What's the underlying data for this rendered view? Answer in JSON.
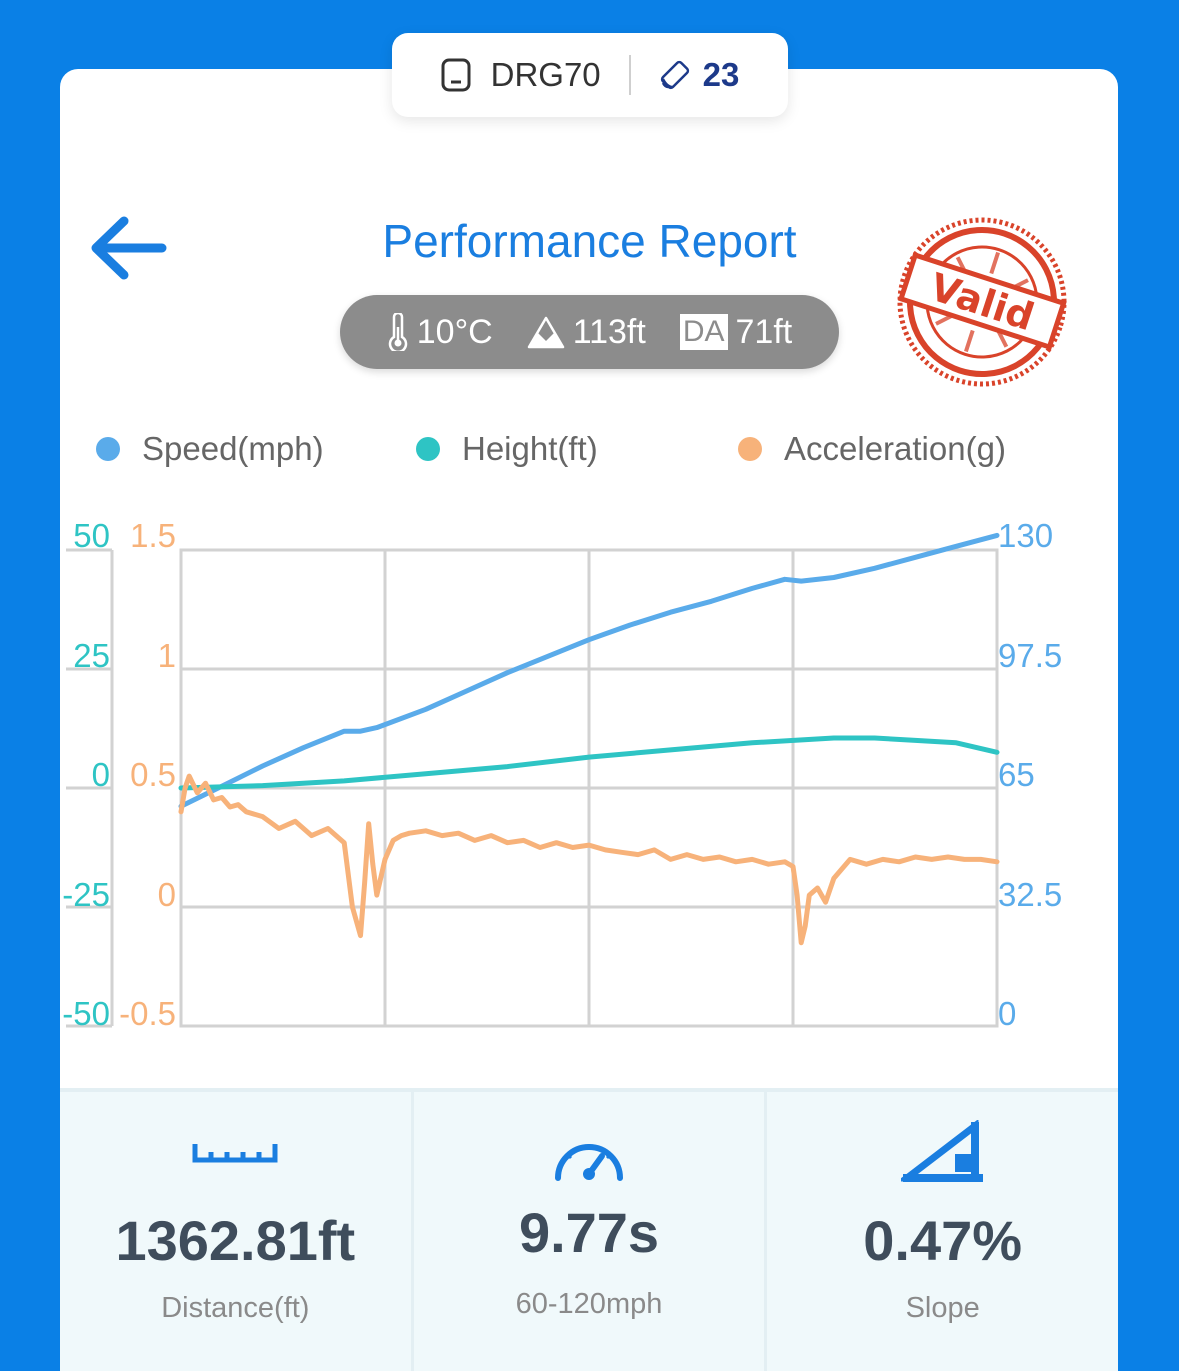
{
  "device": {
    "name": "DRG70",
    "satellites": "23",
    "device_icon": "phone-icon",
    "satellite_icon": "satellite-icon"
  },
  "header": {
    "title": "Performance Report",
    "back_icon": "arrow-left-icon"
  },
  "conditions": {
    "temperature": "10°C",
    "altitude": "113ft",
    "da_label": "DA",
    "density_altitude": "71ft"
  },
  "stamp": {
    "text": "Valid",
    "color": "#d9432a"
  },
  "legend": [
    {
      "label": "Speed(mph)",
      "color": "#5aabea"
    },
    {
      "label": "Height(ft)",
      "color": "#2ec4c4"
    },
    {
      "label": "Acceleration(g)",
      "color": "#f7b27a"
    }
  ],
  "chart_data": {
    "type": "line",
    "height_axis": {
      "ticks": [
        "50",
        "25",
        "0",
        "-25",
        "-50"
      ],
      "range": [
        -50,
        50
      ],
      "color": "#2ec4c4"
    },
    "accel_axis": {
      "ticks": [
        "1.5",
        "1",
        "0.5",
        "0",
        "-0.5"
      ],
      "range": [
        -0.5,
        1.5
      ],
      "color": "#f7b27a"
    },
    "speed_axis": {
      "ticks": [
        "130",
        "97.5",
        "65",
        "32.5",
        "0"
      ],
      "range": [
        0,
        130
      ],
      "color": "#5aabea"
    },
    "x_range": [
      0,
      1
    ],
    "grid": true,
    "series": [
      {
        "name": "Speed(mph)",
        "color": "#5aabea",
        "axis": "speed",
        "x": [
          0,
          0.05,
          0.1,
          0.15,
          0.2,
          0.22,
          0.24,
          0.3,
          0.35,
          0.4,
          0.45,
          0.5,
          0.55,
          0.6,
          0.65,
          0.7,
          0.74,
          0.76,
          0.8,
          0.85,
          0.9,
          0.95,
          1.0
        ],
        "values": [
          60,
          65.5,
          71,
          76,
          80.5,
          80.5,
          81.5,
          86.5,
          91.5,
          96.5,
          101,
          105.5,
          109.5,
          113,
          116,
          119.5,
          122,
          121.5,
          122.5,
          125,
          128,
          131,
          134
        ]
      },
      {
        "name": "Height(ft)",
        "color": "#2ec4c4",
        "axis": "height",
        "x": [
          0,
          0.1,
          0.2,
          0.3,
          0.4,
          0.5,
          0.6,
          0.7,
          0.8,
          0.85,
          0.9,
          0.95,
          1.0
        ],
        "values": [
          0,
          0.5,
          1.5,
          3,
          4.5,
          6.5,
          8,
          9.5,
          10.5,
          10.5,
          10,
          9.5,
          7.5
        ]
      },
      {
        "name": "Acceleration(g)",
        "color": "#f7b27a",
        "axis": "accel",
        "x": [
          0,
          0.005,
          0.01,
          0.02,
          0.03,
          0.04,
          0.05,
          0.06,
          0.07,
          0.08,
          0.1,
          0.12,
          0.14,
          0.16,
          0.18,
          0.2,
          0.21,
          0.22,
          0.225,
          0.23,
          0.235,
          0.24,
          0.25,
          0.26,
          0.27,
          0.28,
          0.3,
          0.32,
          0.34,
          0.36,
          0.38,
          0.4,
          0.42,
          0.44,
          0.46,
          0.48,
          0.5,
          0.52,
          0.54,
          0.56,
          0.58,
          0.6,
          0.62,
          0.64,
          0.66,
          0.68,
          0.7,
          0.72,
          0.74,
          0.75,
          0.755,
          0.76,
          0.765,
          0.77,
          0.78,
          0.79,
          0.8,
          0.82,
          0.84,
          0.86,
          0.88,
          0.9,
          0.92,
          0.94,
          0.96,
          0.98,
          1.0
        ],
        "values": [
          0.4,
          0.5,
          0.55,
          0.48,
          0.52,
          0.45,
          0.46,
          0.42,
          0.43,
          0.4,
          0.38,
          0.33,
          0.36,
          0.3,
          0.33,
          0.27,
          0.0,
          -0.12,
          0.1,
          0.35,
          0.18,
          0.05,
          0.2,
          0.28,
          0.3,
          0.31,
          0.32,
          0.3,
          0.31,
          0.28,
          0.3,
          0.27,
          0.28,
          0.25,
          0.27,
          0.25,
          0.26,
          0.24,
          0.23,
          0.22,
          0.24,
          0.2,
          0.22,
          0.2,
          0.21,
          0.19,
          0.2,
          0.18,
          0.19,
          0.17,
          0.05,
          -0.15,
          -0.08,
          0.05,
          0.08,
          0.02,
          0.12,
          0.2,
          0.18,
          0.2,
          0.19,
          0.21,
          0.2,
          0.21,
          0.2,
          0.2,
          0.19
        ]
      }
    ]
  },
  "stats": [
    {
      "icon": "ruler-icon",
      "value": "1362.81ft",
      "label": "Distance(ft)"
    },
    {
      "icon": "speedometer-icon",
      "value": "9.77s",
      "label": "60-120mph"
    },
    {
      "icon": "slope-icon",
      "value": "0.47%",
      "label": "Slope"
    }
  ]
}
